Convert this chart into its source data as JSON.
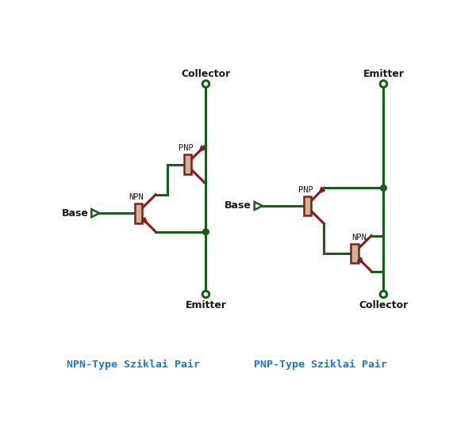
{
  "bg_color": "#ffffff",
  "wire_color": "#1a5c1a",
  "transistor_body_color": "#c8b89a",
  "transistor_line_color": "#8b1a1a",
  "junction_color": "#1a5c1a",
  "label_color": "#1a1a1a",
  "title_color": "#1a7acc",
  "title_npn": "NPN-Type Sziklai Pair",
  "title_pnp": "PNP-Type Sziklai Pair",
  "label_collector_npn": "Collector",
  "label_emitter_npn": "Emitter",
  "label_base_npn": "Base",
  "label_npn": "NPN",
  "label_pnp_npn": "PNP",
  "label_collector_pnp": "Collector",
  "label_emitter_pnp": "Emitter",
  "label_base_pnp": "Base",
  "label_npn_pnp": "NPN",
  "label_pnp_pnp": "PNP"
}
